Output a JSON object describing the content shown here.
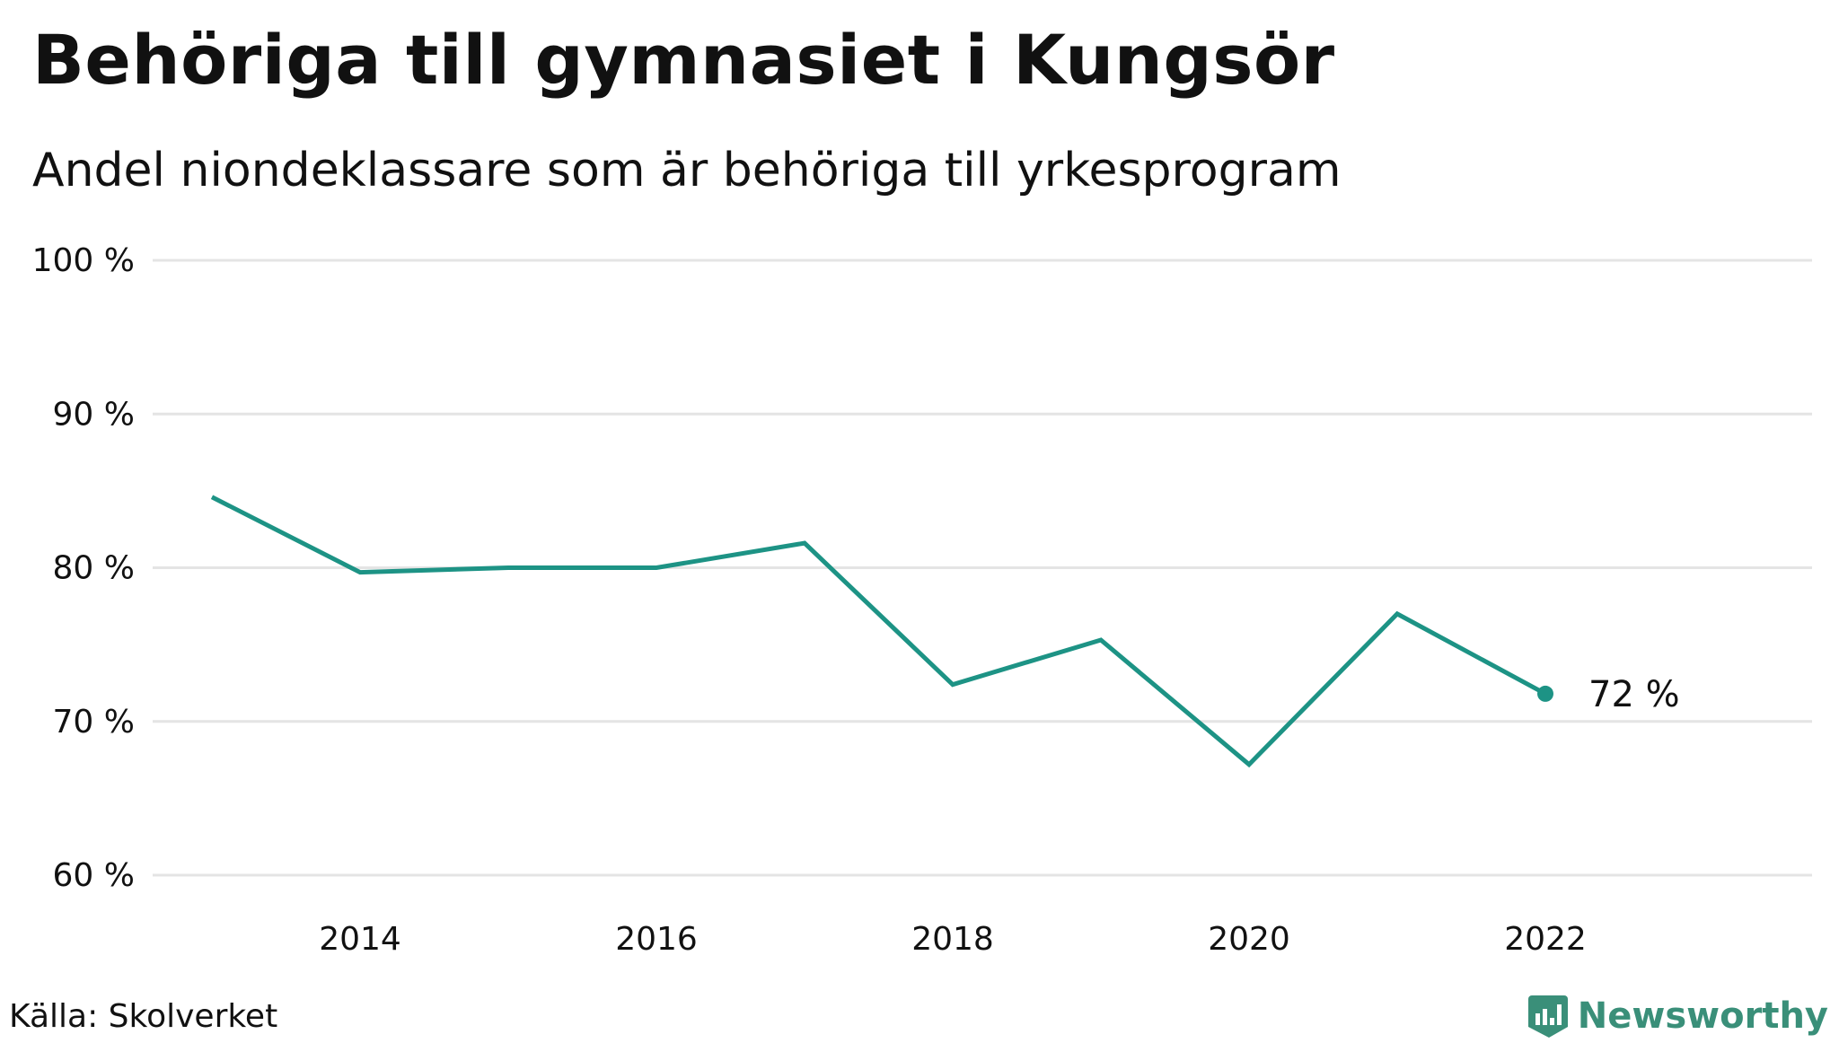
{
  "chart_data": {
    "type": "line",
    "title": "Behöriga till gymnasiet i Kungsör",
    "subtitle": "Andel niondeklassare som är behöriga till yrkesprogram",
    "x": [
      2013,
      2014,
      2015,
      2016,
      2017,
      2018,
      2019,
      2020,
      2021,
      2022
    ],
    "series": [
      {
        "values": [
          84.6,
          79.7,
          80.0,
          80.0,
          81.6,
          72.4,
          75.3,
          67.2,
          77.0,
          71.8
        ]
      }
    ],
    "xlim": [
      2012.6,
      2023.8
    ],
    "ylim": [
      60,
      100
    ],
    "x_ticks": [
      "2014",
      "2016",
      "2018",
      "2020",
      "2022"
    ],
    "y_ticks": [
      "60 %",
      "70 %",
      "80 %",
      "90 %",
      "100 %"
    ],
    "end_label": "72  %",
    "grid": "horizontal",
    "line_color": "#1d9385",
    "grid_color": "#e4e4e4"
  },
  "source": "Källa: Skolverket",
  "brand": {
    "name": "Newsworthy",
    "color": "#3a8f79"
  }
}
